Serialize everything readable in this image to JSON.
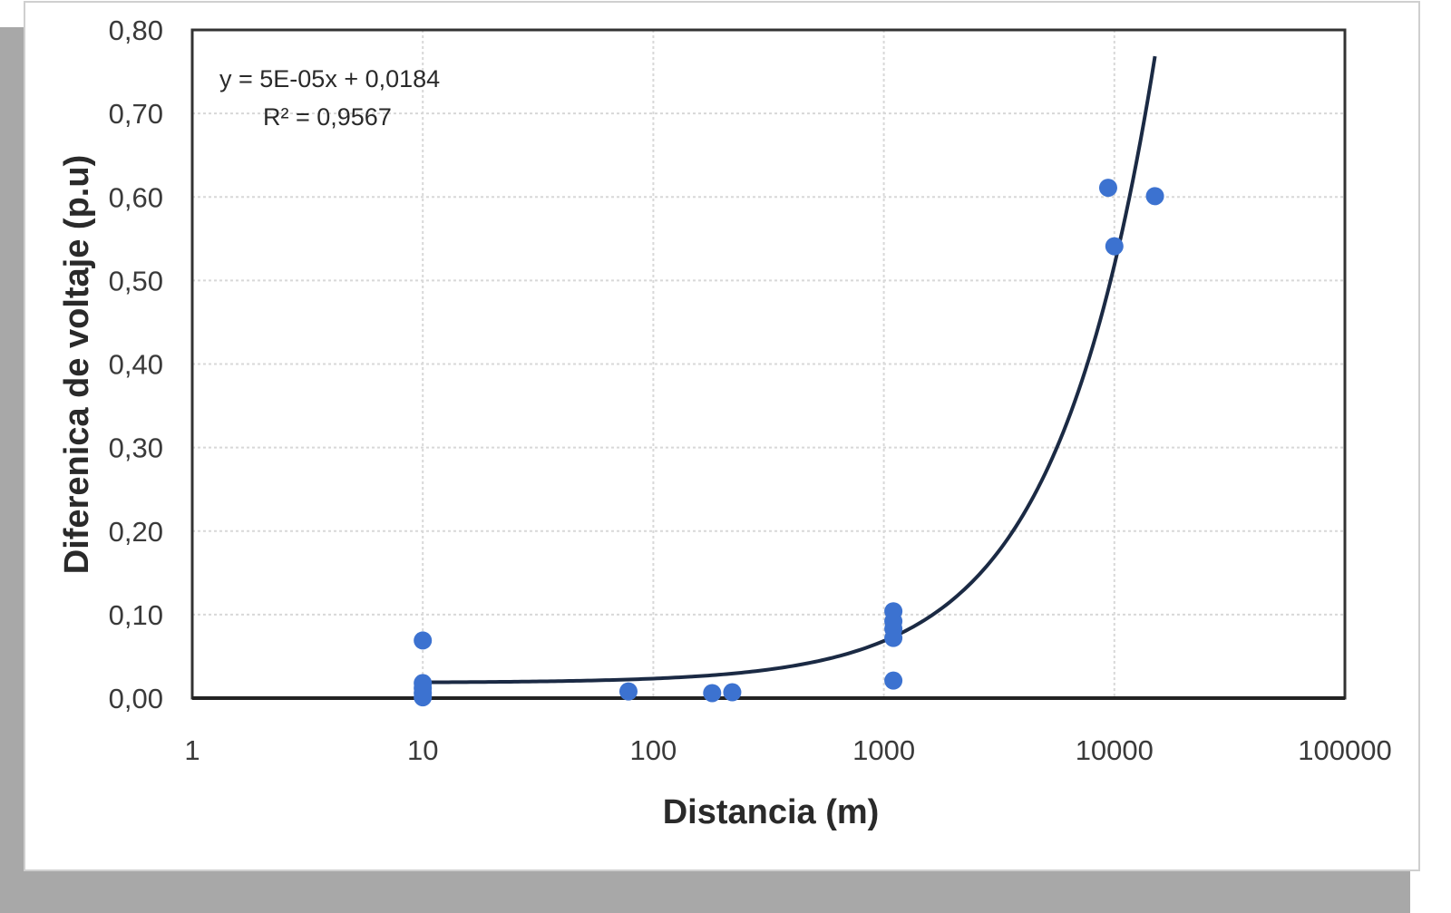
{
  "chart_data": {
    "type": "scatter",
    "title": "",
    "xlabel": "Distancia (m)",
    "ylabel": "Diferenica de voltaje (p.u)",
    "x_scale": "log",
    "xlim": [
      1,
      100000
    ],
    "ylim": [
      0,
      0.8
    ],
    "x_ticks": [
      1,
      10,
      100,
      1000,
      10000,
      100000
    ],
    "x_tick_labels": [
      "1",
      "10",
      "100",
      "1000",
      "10000",
      "100000"
    ],
    "y_ticks": [
      0,
      0.1,
      0.2,
      0.3,
      0.4,
      0.5,
      0.6,
      0.7,
      0.8
    ],
    "y_tick_labels": [
      "0,00",
      "0,10",
      "0,20",
      "0,30",
      "0,40",
      "0,50",
      "0,60",
      "0,70",
      "0,80"
    ],
    "grid": true,
    "legend": "none",
    "colors": {
      "points": "#3c72d0",
      "trendline": "#1b2a44",
      "frame": "#333333",
      "grid": "#d8d8d8"
    },
    "series": [
      {
        "points": [
          {
            "x": 10,
            "y": 0.069
          },
          {
            "x": 10,
            "y": 0.018
          },
          {
            "x": 10,
            "y": 0.012
          },
          {
            "x": 10,
            "y": 0.006
          },
          {
            "x": 10,
            "y": 0.001
          },
          {
            "x": 78,
            "y": 0.008
          },
          {
            "x": 180,
            "y": 0.006
          },
          {
            "x": 220,
            "y": 0.007
          },
          {
            "x": 1100,
            "y": 0.104
          },
          {
            "x": 1100,
            "y": 0.092
          },
          {
            "x": 1100,
            "y": 0.083
          },
          {
            "x": 1100,
            "y": 0.072
          },
          {
            "x": 1100,
            "y": 0.021
          },
          {
            "x": 9400,
            "y": 0.611
          },
          {
            "x": 10000,
            "y": 0.541
          },
          {
            "x": 15000,
            "y": 0.601
          }
        ]
      }
    ],
    "trendline": {
      "type": "linear",
      "slope": 5e-05,
      "intercept": 0.0184,
      "x_range": [
        10,
        15000
      ],
      "equation": "y = 5E-05x + 0,0184",
      "r_squared": "R² = 0,9567"
    }
  }
}
